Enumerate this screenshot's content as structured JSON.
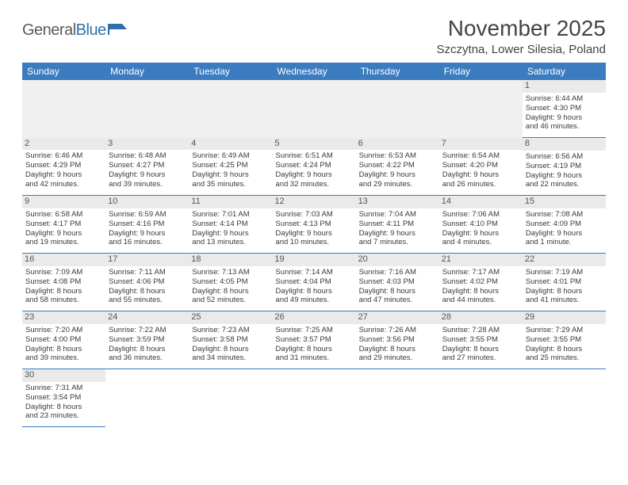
{
  "logo": {
    "part1": "General",
    "part2": "Blue"
  },
  "title": "November 2025",
  "location": "Szczytna, Lower Silesia, Poland",
  "colors": {
    "header_bg": "#3b7bbf",
    "header_fg": "#ffffff",
    "daynum_bg": "#eaeaea",
    "rule": "#3b7bbf"
  },
  "weekdays": [
    "Sunday",
    "Monday",
    "Tuesday",
    "Wednesday",
    "Thursday",
    "Friday",
    "Saturday"
  ],
  "weeks": [
    [
      null,
      null,
      null,
      null,
      null,
      null,
      {
        "n": "1",
        "sr": "Sunrise: 6:44 AM",
        "ss": "Sunset: 4:30 PM",
        "d1": "Daylight: 9 hours",
        "d2": "and 46 minutes."
      }
    ],
    [
      {
        "n": "2",
        "sr": "Sunrise: 6:46 AM",
        "ss": "Sunset: 4:29 PM",
        "d1": "Daylight: 9 hours",
        "d2": "and 42 minutes."
      },
      {
        "n": "3",
        "sr": "Sunrise: 6:48 AM",
        "ss": "Sunset: 4:27 PM",
        "d1": "Daylight: 9 hours",
        "d2": "and 39 minutes."
      },
      {
        "n": "4",
        "sr": "Sunrise: 6:49 AM",
        "ss": "Sunset: 4:25 PM",
        "d1": "Daylight: 9 hours",
        "d2": "and 35 minutes."
      },
      {
        "n": "5",
        "sr": "Sunrise: 6:51 AM",
        "ss": "Sunset: 4:24 PM",
        "d1": "Daylight: 9 hours",
        "d2": "and 32 minutes."
      },
      {
        "n": "6",
        "sr": "Sunrise: 6:53 AM",
        "ss": "Sunset: 4:22 PM",
        "d1": "Daylight: 9 hours",
        "d2": "and 29 minutes."
      },
      {
        "n": "7",
        "sr": "Sunrise: 6:54 AM",
        "ss": "Sunset: 4:20 PM",
        "d1": "Daylight: 9 hours",
        "d2": "and 26 minutes."
      },
      {
        "n": "8",
        "sr": "Sunrise: 6:56 AM",
        "ss": "Sunset: 4:19 PM",
        "d1": "Daylight: 9 hours",
        "d2": "and 22 minutes."
      }
    ],
    [
      {
        "n": "9",
        "sr": "Sunrise: 6:58 AM",
        "ss": "Sunset: 4:17 PM",
        "d1": "Daylight: 9 hours",
        "d2": "and 19 minutes."
      },
      {
        "n": "10",
        "sr": "Sunrise: 6:59 AM",
        "ss": "Sunset: 4:16 PM",
        "d1": "Daylight: 9 hours",
        "d2": "and 16 minutes."
      },
      {
        "n": "11",
        "sr": "Sunrise: 7:01 AM",
        "ss": "Sunset: 4:14 PM",
        "d1": "Daylight: 9 hours",
        "d2": "and 13 minutes."
      },
      {
        "n": "12",
        "sr": "Sunrise: 7:03 AM",
        "ss": "Sunset: 4:13 PM",
        "d1": "Daylight: 9 hours",
        "d2": "and 10 minutes."
      },
      {
        "n": "13",
        "sr": "Sunrise: 7:04 AM",
        "ss": "Sunset: 4:11 PM",
        "d1": "Daylight: 9 hours",
        "d2": "and 7 minutes."
      },
      {
        "n": "14",
        "sr": "Sunrise: 7:06 AM",
        "ss": "Sunset: 4:10 PM",
        "d1": "Daylight: 9 hours",
        "d2": "and 4 minutes."
      },
      {
        "n": "15",
        "sr": "Sunrise: 7:08 AM",
        "ss": "Sunset: 4:09 PM",
        "d1": "Daylight: 9 hours",
        "d2": "and 1 minute."
      }
    ],
    [
      {
        "n": "16",
        "sr": "Sunrise: 7:09 AM",
        "ss": "Sunset: 4:08 PM",
        "d1": "Daylight: 8 hours",
        "d2": "and 58 minutes."
      },
      {
        "n": "17",
        "sr": "Sunrise: 7:11 AM",
        "ss": "Sunset: 4:06 PM",
        "d1": "Daylight: 8 hours",
        "d2": "and 55 minutes."
      },
      {
        "n": "18",
        "sr": "Sunrise: 7:13 AM",
        "ss": "Sunset: 4:05 PM",
        "d1": "Daylight: 8 hours",
        "d2": "and 52 minutes."
      },
      {
        "n": "19",
        "sr": "Sunrise: 7:14 AM",
        "ss": "Sunset: 4:04 PM",
        "d1": "Daylight: 8 hours",
        "d2": "and 49 minutes."
      },
      {
        "n": "20",
        "sr": "Sunrise: 7:16 AM",
        "ss": "Sunset: 4:03 PM",
        "d1": "Daylight: 8 hours",
        "d2": "and 47 minutes."
      },
      {
        "n": "21",
        "sr": "Sunrise: 7:17 AM",
        "ss": "Sunset: 4:02 PM",
        "d1": "Daylight: 8 hours",
        "d2": "and 44 minutes."
      },
      {
        "n": "22",
        "sr": "Sunrise: 7:19 AM",
        "ss": "Sunset: 4:01 PM",
        "d1": "Daylight: 8 hours",
        "d2": "and 41 minutes."
      }
    ],
    [
      {
        "n": "23",
        "sr": "Sunrise: 7:20 AM",
        "ss": "Sunset: 4:00 PM",
        "d1": "Daylight: 8 hours",
        "d2": "and 39 minutes."
      },
      {
        "n": "24",
        "sr": "Sunrise: 7:22 AM",
        "ss": "Sunset: 3:59 PM",
        "d1": "Daylight: 8 hours",
        "d2": "and 36 minutes."
      },
      {
        "n": "25",
        "sr": "Sunrise: 7:23 AM",
        "ss": "Sunset: 3:58 PM",
        "d1": "Daylight: 8 hours",
        "d2": "and 34 minutes."
      },
      {
        "n": "26",
        "sr": "Sunrise: 7:25 AM",
        "ss": "Sunset: 3:57 PM",
        "d1": "Daylight: 8 hours",
        "d2": "and 31 minutes."
      },
      {
        "n": "27",
        "sr": "Sunrise: 7:26 AM",
        "ss": "Sunset: 3:56 PM",
        "d1": "Daylight: 8 hours",
        "d2": "and 29 minutes."
      },
      {
        "n": "28",
        "sr": "Sunrise: 7:28 AM",
        "ss": "Sunset: 3:55 PM",
        "d1": "Daylight: 8 hours",
        "d2": "and 27 minutes."
      },
      {
        "n": "29",
        "sr": "Sunrise: 7:29 AM",
        "ss": "Sunset: 3:55 PM",
        "d1": "Daylight: 8 hours",
        "d2": "and 25 minutes."
      }
    ],
    [
      {
        "n": "30",
        "sr": "Sunrise: 7:31 AM",
        "ss": "Sunset: 3:54 PM",
        "d1": "Daylight: 8 hours",
        "d2": "and 23 minutes."
      },
      null,
      null,
      null,
      null,
      null,
      null
    ]
  ]
}
